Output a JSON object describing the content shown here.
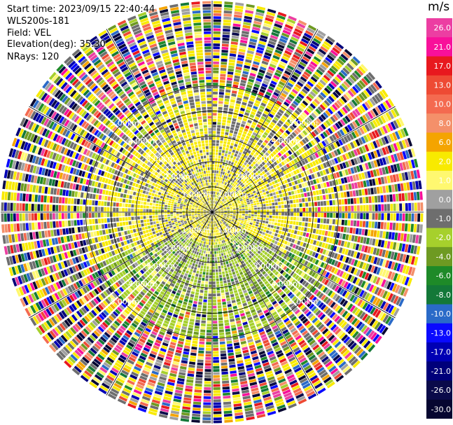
{
  "info": {
    "start_time": "Start time: 2023/09/15 22:40:44",
    "instrument": "WLS200s-181",
    "field": "Field: VEL",
    "elevation": "Elevation(deg): 35.30",
    "nrays": "NRays: 120"
  },
  "colorbar": {
    "unit": "m/s",
    "bins": [
      {
        "label": "26.0",
        "color": "#ec3ea2"
      },
      {
        "label": "21.0",
        "color": "#f8109a"
      },
      {
        "label": "17.0",
        "color": "#e8181e"
      },
      {
        "label": "13.0",
        "color": "#ee4a34"
      },
      {
        "label": "10.0",
        "color": "#f46a50"
      },
      {
        "label": "8.0",
        "color": "#f4906a"
      },
      {
        "label": "6.0",
        "color": "#f4a400"
      },
      {
        "label": "2.0",
        "color": "#f8ea00"
      },
      {
        "label": "1.0",
        "color": "#fff870"
      },
      {
        "label": "0.0",
        "color": "#a0a0a0"
      },
      {
        "label": "-1.0",
        "color": "#6e6e6e"
      },
      {
        "label": "-2.0",
        "color": "#a6d02c"
      },
      {
        "label": "-4.0",
        "color": "#6e9a22"
      },
      {
        "label": "-6.0",
        "color": "#1e8a28"
      },
      {
        "label": "-8.0",
        "color": "#137838"
      },
      {
        "label": "-10.0",
        "color": "#2a6ac8"
      },
      {
        "label": "-13.0",
        "color": "#0a0aff"
      },
      {
        "label": "-17.0",
        "color": "#0000b4"
      },
      {
        "label": "-21.0",
        "color": "#00007a"
      },
      {
        "label": "-26.0",
        "color": "#0a0a4a"
      },
      {
        "label": "-30.0",
        "color": "#060630"
      }
    ]
  },
  "chart_data": {
    "type": "heatmap",
    "projection": "polar",
    "field": "VEL",
    "units": "m/s",
    "nrays": 120,
    "elevation_deg": 35.3,
    "range_rings": [
      "1.00km",
      "2.00km",
      "3.00km",
      "4.00km",
      "5.00km"
    ],
    "range_ring_labels": [
      "1.00km",
      "2.00km",
      "3.00km",
      "4.00km",
      "5.00km",
      "1.00km",
      "2.00km",
      "3.00km",
      "4.00km",
      "5.00km",
      "1.00km",
      "2.00km",
      "3.00km",
      "4.00km",
      "5.00km",
      "1.00km",
      "2.00km",
      "3.00km",
      "4.00km",
      "5.00km"
    ],
    "description_regions": {
      "inner": "mostly yellow (approx 1 to 2 m/s) with gray (approx 0 to -1 m/s)",
      "south_inner": "green (approx -2 to -6 m/s)",
      "outer": "noisy multicolored gates across the full scale"
    },
    "colorbar_range": [
      -30.0,
      26.0
    ],
    "grid": true
  }
}
